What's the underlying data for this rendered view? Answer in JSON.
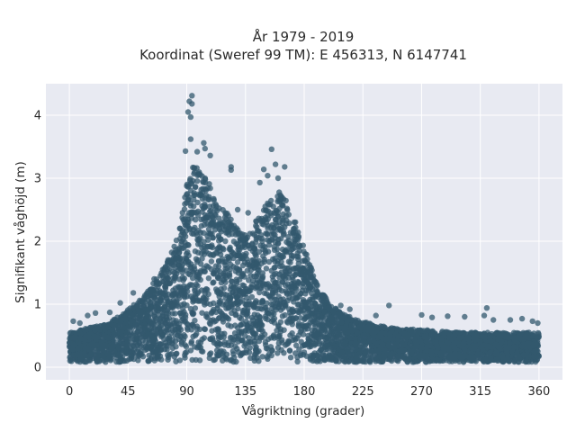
{
  "chart_data": {
    "type": "scatter",
    "title": [
      "År 1979 - 2019",
      "Koordinat (Sweref 99 TM): E 456313, N 6147741"
    ],
    "xlabel": "Vågriktning (grader)",
    "ylabel": "Signifikant våghöjd (m)",
    "xlim": [
      -18,
      378
    ],
    "ylim": [
      -0.2,
      4.5
    ],
    "xticks": [
      0,
      45,
      90,
      135,
      180,
      225,
      270,
      315,
      360
    ],
    "yticks": [
      0,
      1,
      2,
      3,
      4
    ],
    "grid": true,
    "marker_color": "#33586e",
    "plot_background": "#e8eaf2",
    "envelope_upper": {
      "x": [
        0,
        10,
        20,
        30,
        40,
        50,
        60,
        70,
        80,
        85,
        90,
        95,
        100,
        105,
        110,
        115,
        120,
        125,
        130,
        135,
        140,
        145,
        150,
        155,
        160,
        165,
        170,
        175,
        180,
        185,
        190,
        200,
        210,
        220,
        230,
        240,
        250,
        260,
        270,
        280,
        290,
        300,
        310,
        320,
        330,
        340,
        350,
        360
      ],
      "y": [
        0.55,
        0.6,
        0.65,
        0.7,
        0.85,
        1.0,
        1.2,
        1.5,
        1.9,
        2.3,
        2.9,
        3.2,
        3.15,
        3.0,
        2.8,
        2.6,
        2.5,
        2.3,
        2.2,
        2.15,
        2.2,
        2.4,
        2.6,
        2.7,
        2.8,
        2.7,
        2.5,
        2.2,
        1.9,
        1.6,
        1.3,
        1.0,
        0.85,
        0.75,
        0.7,
        0.65,
        0.62,
        0.6,
        0.6,
        0.58,
        0.56,
        0.55,
        0.55,
        0.55,
        0.55,
        0.55,
        0.55,
        0.55
      ]
    },
    "envelope_lower": 0.08,
    "outliers": [
      {
        "x": 94,
        "y": 4.31
      },
      {
        "x": 92,
        "y": 4.22
      },
      {
        "x": 94,
        "y": 4.18
      },
      {
        "x": 91,
        "y": 4.05
      },
      {
        "x": 93,
        "y": 3.97
      },
      {
        "x": 93,
        "y": 3.62
      },
      {
        "x": 103,
        "y": 3.56
      },
      {
        "x": 104,
        "y": 3.47
      },
      {
        "x": 89,
        "y": 3.43
      },
      {
        "x": 108,
        "y": 3.36
      },
      {
        "x": 98,
        "y": 3.42
      },
      {
        "x": 155,
        "y": 3.46
      },
      {
        "x": 124,
        "y": 3.18
      },
      {
        "x": 124,
        "y": 3.13
      },
      {
        "x": 149,
        "y": 3.14
      },
      {
        "x": 158,
        "y": 3.22
      },
      {
        "x": 165,
        "y": 3.18
      },
      {
        "x": 152,
        "y": 3.04
      },
      {
        "x": 160,
        "y": 3.0
      },
      {
        "x": 146,
        "y": 2.93
      },
      {
        "x": 137,
        "y": 2.45
      },
      {
        "x": 129,
        "y": 2.5
      },
      {
        "x": 80,
        "y": 1.62
      },
      {
        "x": 65,
        "y": 1.4
      },
      {
        "x": 49,
        "y": 1.18
      },
      {
        "x": 39,
        "y": 1.02
      },
      {
        "x": 31,
        "y": 0.87
      },
      {
        "x": 20,
        "y": 0.86
      },
      {
        "x": 14,
        "y": 0.82
      },
      {
        "x": 3,
        "y": 0.73
      },
      {
        "x": 8,
        "y": 0.7
      },
      {
        "x": 190,
        "y": 1.2
      },
      {
        "x": 208,
        "y": 0.98
      },
      {
        "x": 215,
        "y": 0.92
      },
      {
        "x": 235,
        "y": 0.82
      },
      {
        "x": 245,
        "y": 0.98
      },
      {
        "x": 270,
        "y": 0.83
      },
      {
        "x": 278,
        "y": 0.79
      },
      {
        "x": 290,
        "y": 0.81
      },
      {
        "x": 303,
        "y": 0.8
      },
      {
        "x": 320,
        "y": 0.94
      },
      {
        "x": 318,
        "y": 0.82
      },
      {
        "x": 325,
        "y": 0.75
      },
      {
        "x": 338,
        "y": 0.75
      },
      {
        "x": 347,
        "y": 0.77
      },
      {
        "x": 355,
        "y": 0.73
      },
      {
        "x": 359,
        "y": 0.7
      }
    ]
  }
}
